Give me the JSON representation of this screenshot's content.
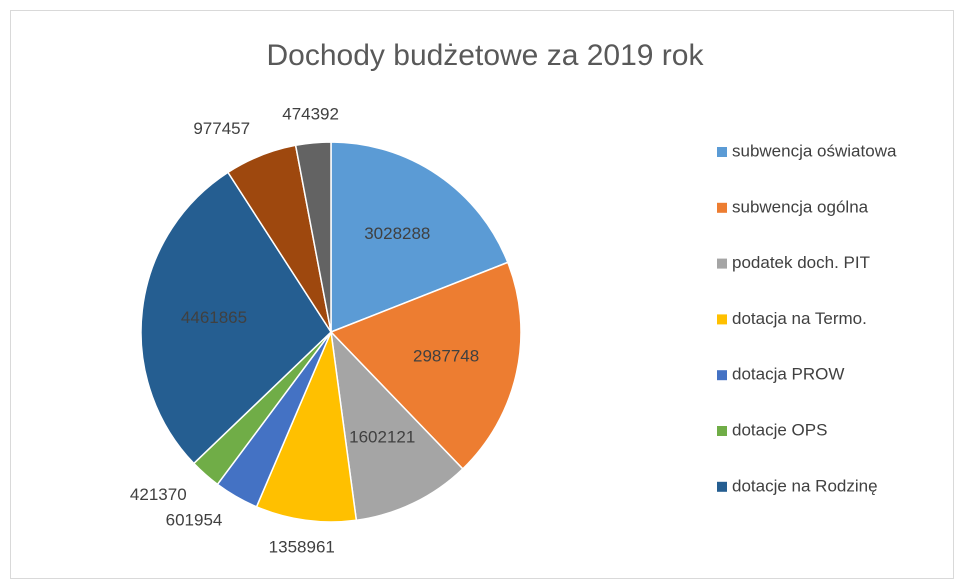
{
  "chart_data": {
    "type": "pie",
    "title": "Dochody budżetowe za 2019 rok",
    "categories": [
      "subwencja oświatowa",
      "subwencja ogólna",
      "podatek doch. PIT",
      "dotacja na Termo.",
      "dotacja PROW",
      "dotacje OPS",
      "dotacje na Rodzinę",
      null,
      null
    ],
    "values": [
      3028288,
      2987748,
      1602121,
      1358961,
      601954,
      421370,
      4461865,
      977457,
      474392
    ],
    "colors": [
      "#5b9bd5",
      "#ed7d31",
      "#a5a5a5",
      "#ffc000",
      "#4472c4",
      "#70ad47",
      "#255e91",
      "#9e480e",
      "#636363"
    ],
    "legend": "right"
  }
}
